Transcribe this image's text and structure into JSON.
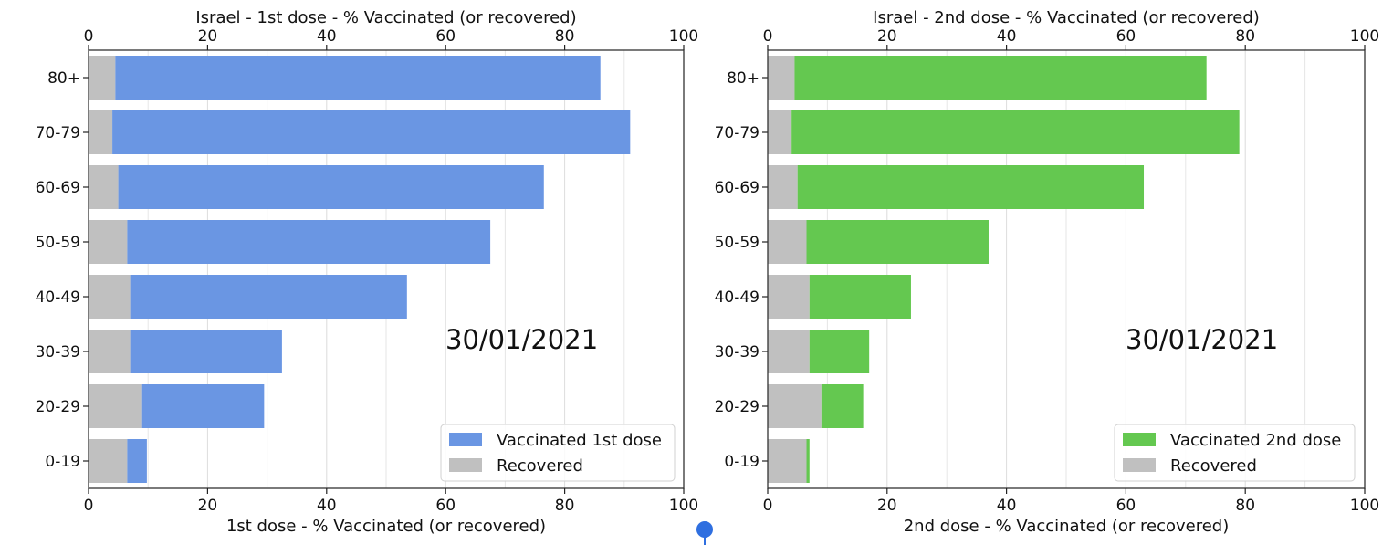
{
  "chart_data": [
    {
      "type": "bar",
      "orientation": "horizontal",
      "stacked": true,
      "title": "Israel - 1st dose - % Vaccinated (or recovered)",
      "xlabel": "1st dose - % Vaccinated (or recovered)",
      "xlim": [
        0,
        100
      ],
      "xticks": [
        "0",
        "20",
        "40",
        "60",
        "80",
        "100"
      ],
      "categories": [
        "80+",
        "70-79",
        "60-69",
        "50-59",
        "40-49",
        "30-39",
        "20-29",
        "0-19"
      ],
      "series": [
        {
          "name": "Recovered",
          "color": "#c0c0c0",
          "values": [
            4.5,
            4,
            5,
            6.5,
            7,
            7,
            9,
            6.5
          ]
        },
        {
          "name": "Vaccinated 1st dose",
          "color": "#6a96e3",
          "values": [
            81.5,
            87,
            71.5,
            61,
            46.5,
            25.5,
            20.5,
            3.3
          ]
        }
      ],
      "annotation": "30/01/2021",
      "grid": true,
      "legend": "lower-right"
    },
    {
      "type": "bar",
      "orientation": "horizontal",
      "stacked": true,
      "title": "Israel - 2nd dose - % Vaccinated (or recovered)",
      "xlabel": "2nd dose - % Vaccinated (or recovered)",
      "xlim": [
        0,
        100
      ],
      "xticks": [
        "0",
        "20",
        "40",
        "60",
        "80",
        "100"
      ],
      "categories": [
        "80+",
        "70-79",
        "60-69",
        "50-59",
        "40-49",
        "30-39",
        "20-29",
        "0-19"
      ],
      "series": [
        {
          "name": "Recovered",
          "color": "#c0c0c0",
          "values": [
            4.5,
            4,
            5,
            6.5,
            7,
            7,
            9,
            6.5
          ]
        },
        {
          "name": "Vaccinated 2nd dose",
          "color": "#64c850",
          "values": [
            69,
            75,
            58,
            30.5,
            17,
            10,
            7,
            0.5
          ]
        }
      ],
      "annotation": "30/01/2021",
      "grid": true,
      "legend": "lower-right"
    }
  ],
  "marker_color": "#2f6fe0"
}
